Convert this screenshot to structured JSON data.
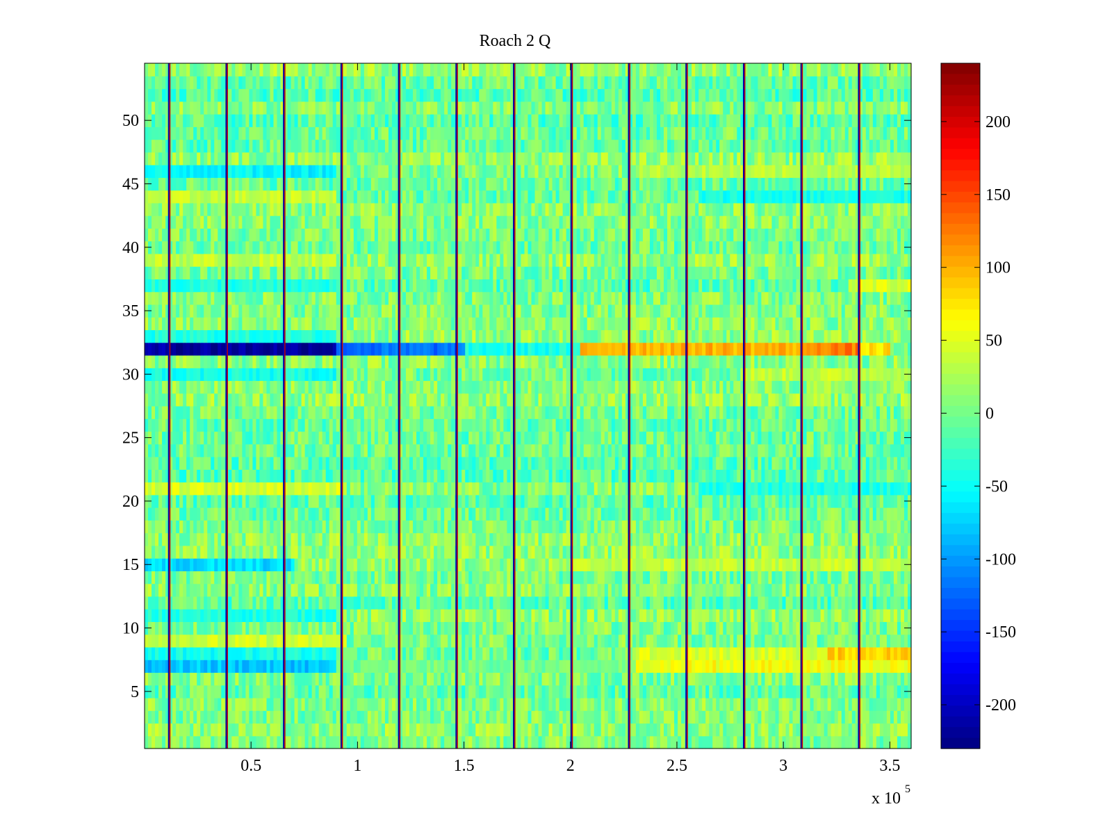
{
  "chart_data": {
    "type": "heatmap",
    "title": "Roach 2 Q",
    "xlabel": "",
    "ylabel": "",
    "x_multiplier_label": "x 10",
    "x_multiplier_exponent": "5",
    "xlim": [
      0,
      3.6
    ],
    "ylim": [
      0.5,
      54.5
    ],
    "x_ticks": [
      0.5,
      1,
      1.5,
      2,
      2.5,
      3,
      3.5
    ],
    "x_tick_labels": [
      "0.5",
      "1",
      "1.5",
      "2",
      "2.5",
      "3",
      "3.5"
    ],
    "y_ticks": [
      5,
      10,
      15,
      20,
      25,
      30,
      35,
      40,
      45,
      50
    ],
    "y_tick_labels": [
      "5",
      "10",
      "15",
      "20",
      "25",
      "30",
      "35",
      "40",
      "45",
      "50"
    ],
    "rows": 54,
    "colormap": "jet",
    "clim": [
      -230,
      240
    ],
    "colorbar": {
      "ticks": [
        200,
        150,
        100,
        50,
        0,
        -50,
        -100,
        -150,
        -200
      ],
      "tick_labels": [
        "200",
        "150",
        "100",
        "50",
        "0",
        "-50",
        "-100",
        "-150",
        "-200"
      ]
    },
    "background_range": [
      -40,
      40
    ],
    "vertical_artifact_x": [
      0.115,
      0.385,
      0.655,
      0.925,
      1.195,
      1.465,
      1.735,
      2.005,
      2.275,
      2.545,
      2.815,
      3.085,
      3.355
    ],
    "row_biases": [
      {
        "row": 32,
        "x_from": 0,
        "x_to": 0.9,
        "value": -215
      },
      {
        "row": 32,
        "x_from": 0.9,
        "x_to": 1.5,
        "value": -120
      },
      {
        "row": 32,
        "x_from": 1.5,
        "x_to": 2.05,
        "value": -45
      },
      {
        "row": 32,
        "x_from": 2.05,
        "x_to": 3.15,
        "value": 100
      },
      {
        "row": 32,
        "x_from": 3.15,
        "x_to": 3.35,
        "value": 125
      },
      {
        "row": 32,
        "x_from": 3.35,
        "x_to": 3.5,
        "value": 75
      },
      {
        "row": 7,
        "x_from": 0,
        "x_to": 0.9,
        "value": -80
      },
      {
        "row": 7,
        "x_from": 0.9,
        "x_to": 2.3,
        "value": 0
      },
      {
        "row": 7,
        "x_from": 2.3,
        "x_to": 3.6,
        "value": 60
      },
      {
        "row": 8,
        "x_from": 0,
        "x_to": 0.9,
        "value": -45
      },
      {
        "row": 8,
        "x_from": 2.3,
        "x_to": 3.2,
        "value": 45
      },
      {
        "row": 8,
        "x_from": 3.2,
        "x_to": 3.6,
        "value": 85
      },
      {
        "row": 15,
        "x_from": 0,
        "x_to": 0.7,
        "value": -70
      },
      {
        "row": 15,
        "x_from": 2.0,
        "x_to": 3.6,
        "value": 35
      },
      {
        "row": 21,
        "x_from": 0,
        "x_to": 0.95,
        "value": 45
      },
      {
        "row": 21,
        "x_from": 2.6,
        "x_to": 3.6,
        "value": -40
      },
      {
        "row": 9,
        "x_from": 0,
        "x_to": 0.95,
        "value": 40
      },
      {
        "row": 46,
        "x_from": 0,
        "x_to": 0.9,
        "value": -55
      },
      {
        "row": 46,
        "x_from": 2.3,
        "x_to": 3.6,
        "value": 30
      },
      {
        "row": 44,
        "x_from": 2.6,
        "x_to": 3.6,
        "value": -45
      },
      {
        "row": 44,
        "x_from": 0,
        "x_to": 0.9,
        "value": 35
      },
      {
        "row": 37,
        "x_from": 3.3,
        "x_to": 3.6,
        "value": 45
      },
      {
        "row": 37,
        "x_from": 0,
        "x_to": 0.9,
        "value": -40
      },
      {
        "row": 39,
        "x_from": 0,
        "x_to": 0.9,
        "value": 35
      },
      {
        "row": 30,
        "x_from": 0,
        "x_to": 0.9,
        "value": -45
      },
      {
        "row": 30,
        "x_from": 2.8,
        "x_to": 3.6,
        "value": 35
      },
      {
        "row": 11,
        "x_from": 0,
        "x_to": 0.9,
        "value": -40
      },
      {
        "row": 33,
        "x_from": 0,
        "x_to": 0.9,
        "value": -40
      }
    ]
  }
}
